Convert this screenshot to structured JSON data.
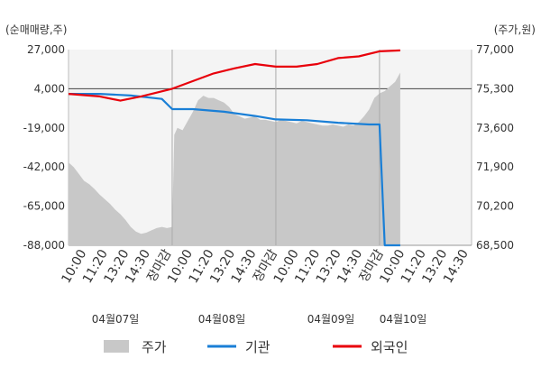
{
  "chart_data": {
    "type": "line",
    "units": {
      "left": "(순매매량,주)",
      "right": "(주가,원)"
    },
    "y_left": {
      "ticks": [
        "27,000",
        "4,000",
        "-19,000",
        "-42,000",
        "-65,000",
        "-88,000"
      ],
      "min": -88000,
      "max": 27000
    },
    "y_right": {
      "ticks": [
        "77,000",
        "75,300",
        "73,600",
        "71,900",
        "70,200",
        "68,500"
      ],
      "min": 68500,
      "max": 77000
    },
    "x_ticks": [
      "10:00",
      "11:20",
      "13:20",
      "14:30",
      "장마감",
      "10:00",
      "11:20",
      "13:20",
      "14:30",
      "장마감",
      "10:00",
      "11:20",
      "13:20",
      "14:30",
      "장마감",
      "10:00",
      "11:20",
      "13:20",
      "14:30"
    ],
    "close_color": "#e8000b",
    "tick_color": "#333333",
    "dates": [
      "04월07일",
      "04월08일",
      "04월09일",
      "04월10일"
    ],
    "series": [
      {
        "name": "기관",
        "color": "#1a7fd6",
        "axis": "left",
        "x": [
          0.0,
          0.3,
          0.6,
          0.9,
          1.0,
          1.2,
          1.5,
          1.8,
          2.0,
          2.3,
          2.6,
          2.9,
          3.0,
          3.05,
          3.2
        ],
        "y": [
          1000,
          1000,
          0,
          -2000,
          -8000,
          -8000,
          -9500,
          -12000,
          -14000,
          -14500,
          -16000,
          -17000,
          -17000,
          -88000,
          -88000
        ]
      },
      {
        "name": "외국인",
        "color": "#e8000b",
        "axis": "left",
        "x": [
          0.0,
          0.3,
          0.5,
          0.7,
          1.0,
          1.2,
          1.4,
          1.6,
          1.8,
          2.0,
          2.2,
          2.4,
          2.6,
          2.8,
          3.0,
          3.2
        ],
        "y": [
          1000,
          -500,
          -3000,
          -500,
          4000,
          8500,
          13000,
          16000,
          18500,
          17000,
          17000,
          18500,
          22000,
          23000,
          26000,
          26500
        ]
      },
      {
        "name": "주가",
        "color": "#c8c8c8",
        "axis": "right",
        "type": "area",
        "x": [
          0.0,
          0.05,
          0.1,
          0.15,
          0.2,
          0.25,
          0.3,
          0.35,
          0.4,
          0.45,
          0.5,
          0.55,
          0.6,
          0.65,
          0.7,
          0.75,
          0.8,
          0.85,
          0.9,
          0.95,
          1.0,
          1.02,
          1.05,
          1.1,
          1.15,
          1.2,
          1.25,
          1.3,
          1.35,
          1.4,
          1.45,
          1.5,
          1.55,
          1.6,
          1.65,
          1.7,
          1.75,
          1.8,
          1.85,
          1.9,
          1.95,
          2.0,
          2.05,
          2.1,
          2.15,
          2.2,
          2.25,
          2.3,
          2.35,
          2.4,
          2.45,
          2.5,
          2.55,
          2.6,
          2.65,
          2.7,
          2.75,
          2.8,
          2.85,
          2.9,
          2.95,
          3.0,
          3.05,
          3.1,
          3.15,
          3.2
        ],
        "y": [
          72100,
          71900,
          71600,
          71300,
          71150,
          70950,
          70700,
          70500,
          70300,
          70050,
          69850,
          69600,
          69300,
          69100,
          69000,
          69050,
          69150,
          69250,
          69300,
          69250,
          69300,
          73300,
          73600,
          73500,
          73900,
          74300,
          74800,
          75000,
          74900,
          74900,
          74800,
          74700,
          74500,
          74200,
          74100,
          74000,
          74050,
          74100,
          73950,
          73950,
          73900,
          73850,
          73950,
          73900,
          73850,
          73800,
          73900,
          73850,
          73800,
          73750,
          73700,
          73700,
          73750,
          73700,
          73650,
          73750,
          73700,
          73850,
          74100,
          74400,
          74900,
          75100,
          75200,
          75400,
          75600,
          76000
        ]
      }
    ],
    "legend": [
      {
        "label": "주가",
        "color": "#c8c8c8",
        "kind": "box"
      },
      {
        "label": "기관",
        "color": "#1a7fd6",
        "kind": "line"
      },
      {
        "label": "외국인",
        "color": "#e8000b",
        "kind": "line"
      }
    ],
    "legend_position": "bottom"
  }
}
